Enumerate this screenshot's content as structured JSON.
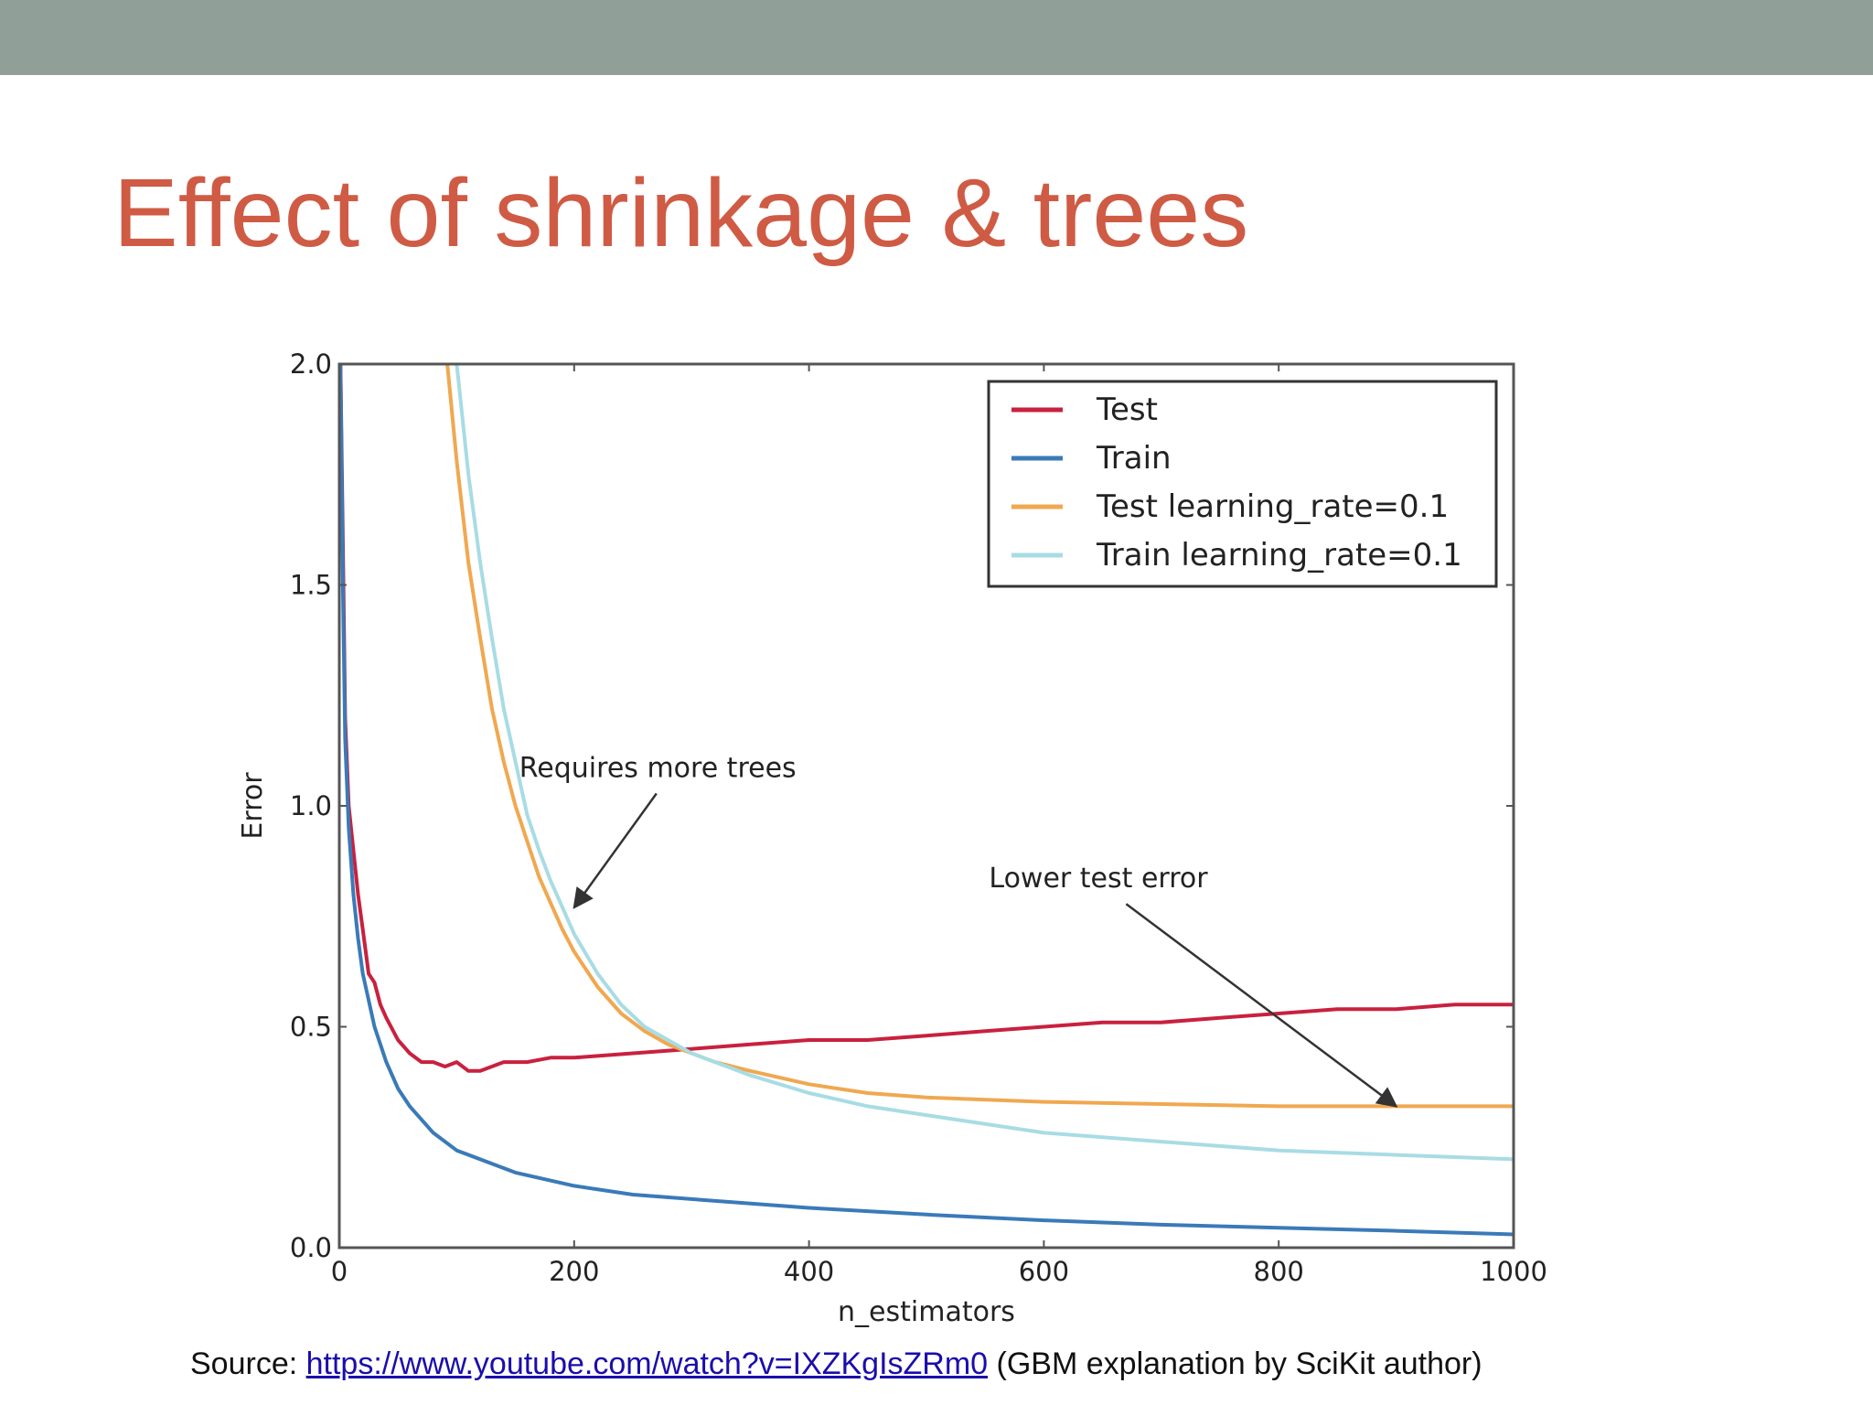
{
  "slide": {
    "title": "Effect of shrinkage & trees",
    "source_prefix": "Source: ",
    "source_link": "https://www.youtube.com/watch?v=IXZKgIsZRm0",
    "source_suffix": " (GBM explanation by SciKit author)",
    "band_color": "#909f98",
    "title_color": "#cf5b45"
  },
  "chart_data": {
    "type": "line",
    "xlabel": "n_estimators",
    "ylabel": "Error",
    "xlim": [
      0,
      1000
    ],
    "ylim": [
      0,
      2.0
    ],
    "xticks": [
      "0",
      "200",
      "400",
      "600",
      "800",
      "1000"
    ],
    "yticks": [
      "0.0",
      "0.5",
      "1.0",
      "1.5",
      "2.0"
    ],
    "grid": false,
    "legend_position": "top-right",
    "series": [
      {
        "name": "Test",
        "color": "#c8213e",
        "points": [
          [
            1,
            2.0
          ],
          [
            3,
            1.6
          ],
          [
            5,
            1.2
          ],
          [
            8,
            1.0
          ],
          [
            12,
            0.9
          ],
          [
            16,
            0.8
          ],
          [
            20,
            0.72
          ],
          [
            25,
            0.62
          ],
          [
            30,
            0.6
          ],
          [
            35,
            0.55
          ],
          [
            40,
            0.52
          ],
          [
            50,
            0.47
          ],
          [
            60,
            0.44
          ],
          [
            70,
            0.42
          ],
          [
            80,
            0.42
          ],
          [
            90,
            0.41
          ],
          [
            100,
            0.42
          ],
          [
            110,
            0.4
          ],
          [
            120,
            0.4
          ],
          [
            140,
            0.42
          ],
          [
            160,
            0.42
          ],
          [
            180,
            0.43
          ],
          [
            200,
            0.43
          ],
          [
            250,
            0.44
          ],
          [
            300,
            0.45
          ],
          [
            350,
            0.46
          ],
          [
            400,
            0.47
          ],
          [
            450,
            0.47
          ],
          [
            500,
            0.48
          ],
          [
            550,
            0.49
          ],
          [
            600,
            0.5
          ],
          [
            650,
            0.51
          ],
          [
            700,
            0.51
          ],
          [
            750,
            0.52
          ],
          [
            800,
            0.53
          ],
          [
            850,
            0.54
          ],
          [
            900,
            0.54
          ],
          [
            950,
            0.55
          ],
          [
            1000,
            0.55
          ]
        ]
      },
      {
        "name": "Train",
        "color": "#3a7ab8",
        "points": [
          [
            1,
            2.0
          ],
          [
            3,
            1.5
          ],
          [
            5,
            1.15
          ],
          [
            8,
            0.95
          ],
          [
            12,
            0.8
          ],
          [
            16,
            0.7
          ],
          [
            20,
            0.62
          ],
          [
            30,
            0.5
          ],
          [
            40,
            0.42
          ],
          [
            50,
            0.36
          ],
          [
            60,
            0.32
          ],
          [
            80,
            0.26
          ],
          [
            100,
            0.22
          ],
          [
            120,
            0.2
          ],
          [
            150,
            0.17
          ],
          [
            200,
            0.14
          ],
          [
            250,
            0.12
          ],
          [
            300,
            0.11
          ],
          [
            400,
            0.09
          ],
          [
            500,
            0.075
          ],
          [
            600,
            0.062
          ],
          [
            700,
            0.052
          ],
          [
            800,
            0.045
          ],
          [
            900,
            0.038
          ],
          [
            1000,
            0.03
          ]
        ]
      },
      {
        "name": "Test learning_rate=0.1",
        "color": "#f0a850",
        "points": [
          [
            92,
            2.0
          ],
          [
            100,
            1.78
          ],
          [
            110,
            1.55
          ],
          [
            120,
            1.38
          ],
          [
            130,
            1.22
          ],
          [
            140,
            1.1
          ],
          [
            150,
            1.0
          ],
          [
            160,
            0.92
          ],
          [
            170,
            0.84
          ],
          [
            180,
            0.78
          ],
          [
            190,
            0.72
          ],
          [
            200,
            0.67
          ],
          [
            220,
            0.59
          ],
          [
            240,
            0.53
          ],
          [
            260,
            0.49
          ],
          [
            280,
            0.46
          ],
          [
            300,
            0.44
          ],
          [
            320,
            0.42
          ],
          [
            350,
            0.4
          ],
          [
            400,
            0.37
          ],
          [
            450,
            0.35
          ],
          [
            500,
            0.34
          ],
          [
            600,
            0.33
          ],
          [
            700,
            0.325
          ],
          [
            800,
            0.32
          ],
          [
            900,
            0.32
          ],
          [
            1000,
            0.32
          ]
        ]
      },
      {
        "name": "Train learning_rate=0.1",
        "color": "#a8dce4",
        "points": [
          [
            100,
            2.0
          ],
          [
            110,
            1.75
          ],
          [
            120,
            1.55
          ],
          [
            130,
            1.38
          ],
          [
            140,
            1.22
          ],
          [
            150,
            1.1
          ],
          [
            160,
            0.98
          ],
          [
            170,
            0.9
          ],
          [
            180,
            0.83
          ],
          [
            190,
            0.77
          ],
          [
            200,
            0.71
          ],
          [
            220,
            0.62
          ],
          [
            240,
            0.55
          ],
          [
            260,
            0.5
          ],
          [
            280,
            0.47
          ],
          [
            300,
            0.44
          ],
          [
            350,
            0.39
          ],
          [
            400,
            0.35
          ],
          [
            450,
            0.32
          ],
          [
            500,
            0.3
          ],
          [
            600,
            0.26
          ],
          [
            700,
            0.24
          ],
          [
            800,
            0.22
          ],
          [
            900,
            0.21
          ],
          [
            1000,
            0.2
          ]
        ]
      }
    ],
    "annotations": [
      {
        "text": "Requires more trees",
        "xy": [
          200,
          0.77
        ],
        "xytext": [
          200,
          0.97
        ]
      },
      {
        "text": "Lower test error",
        "xy": [
          900,
          0.32
        ],
        "xytext": [
          600,
          0.72
        ]
      }
    ]
  }
}
